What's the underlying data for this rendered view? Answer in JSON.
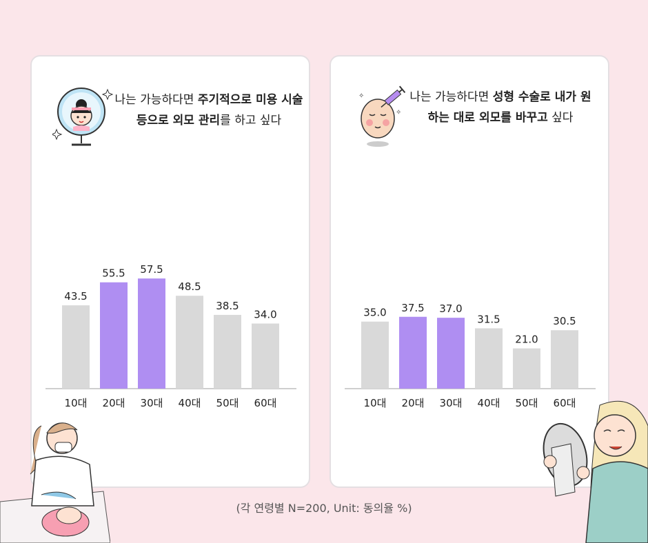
{
  "colors": {
    "background": "#fbe6ea",
    "bar_default": "#d9d9d9",
    "bar_highlight": "#af8ef2",
    "baseline": "#bdbdbd",
    "text": "#222222"
  },
  "left_panel": {
    "title_parts": [
      "나는 가능하다면 ",
      "주기적으로 미용 시술 등으로 외모 관리",
      "를 하고 싶다"
    ]
  },
  "right_panel": {
    "title_parts": [
      "나는 가능하다면 ",
      "성형 수술로 내가 원하는 대로 외모를 바꾸고",
      " 싶다"
    ]
  },
  "chart_data": [
    {
      "type": "bar",
      "title": "나는 가능하다면 주기적으로 미용 시술 등으로 외모 관리를 하고 싶다",
      "categories": [
        "10대",
        "20대",
        "30대",
        "40대",
        "50대",
        "60대"
      ],
      "values": [
        43.5,
        55.5,
        57.5,
        48.5,
        38.5,
        34.0
      ],
      "value_labels": [
        "43.5",
        "55.5",
        "57.5",
        "48.5",
        "38.5",
        "34.0"
      ],
      "highlighted": [
        false,
        true,
        true,
        false,
        false,
        false
      ],
      "ylim": [
        0,
        100
      ]
    },
    {
      "type": "bar",
      "title": "나는 가능하다면 성형 수술로 내가 원하는 대로 외모를 바꾸고 싶다",
      "categories": [
        "10대",
        "20대",
        "30대",
        "40대",
        "50대",
        "60대"
      ],
      "values": [
        35.0,
        37.5,
        37.0,
        31.5,
        21.0,
        30.5
      ],
      "value_labels": [
        "35.0",
        "37.5",
        "37.0",
        "31.5",
        "21.0",
        "30.5"
      ],
      "highlighted": [
        false,
        true,
        true,
        false,
        false,
        false
      ],
      "ylim": [
        0,
        100
      ]
    }
  ],
  "footnote": "(각 연령별 N=200, Unit: 동의율 %)",
  "icons": [
    "mirror-girl-icon",
    "face-injection-icon",
    "aesthetician-illustration",
    "woman-mirror-illustration"
  ]
}
